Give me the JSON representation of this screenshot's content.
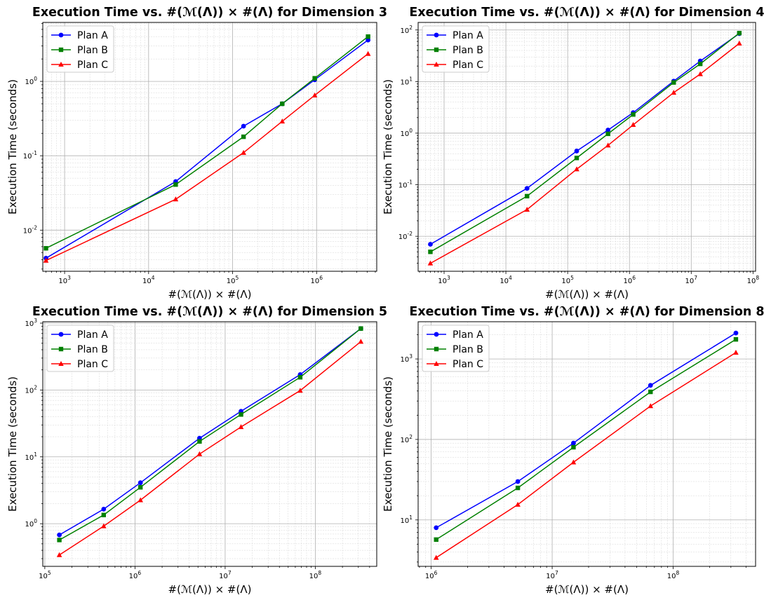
{
  "chart_data": [
    {
      "type": "line",
      "title": "Execution Time vs. #(ℳ(Λ)) × #(Λ) for Dimension 3",
      "xlabel": "#(ℳ(Λ)) × #(Λ)",
      "ylabel": "Execution Time (seconds)",
      "xscale": "log",
      "yscale": "log",
      "xlim": [
        550,
        5200000
      ],
      "ylim": [
        0.0028,
        6.2
      ],
      "xticks": [
        {
          "value": 1000,
          "label": "10^3"
        },
        {
          "value": 10000,
          "label": "10^4"
        },
        {
          "value": 100000,
          "label": "10^5"
        },
        {
          "value": 1000000,
          "label": "10^6"
        }
      ],
      "yticks": [
        {
          "value": 0.01,
          "label": "10^-2"
        },
        {
          "value": 0.1,
          "label": "10^-1"
        },
        {
          "value": 1,
          "label": "10^0"
        }
      ],
      "grid": true,
      "legend": "top-left",
      "x": [
        600,
        21000,
        135000,
        390000,
        950000,
        4100000
      ],
      "series": [
        {
          "name": "Plan A",
          "color": "#0000ff",
          "marker": "circle",
          "values": [
            0.0042,
            0.045,
            0.25,
            0.5,
            1.05,
            3.6
          ]
        },
        {
          "name": "Plan B",
          "color": "#008000",
          "marker": "square",
          "values": [
            0.0057,
            0.041,
            0.18,
            0.5,
            1.1,
            4.0
          ]
        },
        {
          "name": "Plan C",
          "color": "#ff0000",
          "marker": "triangle",
          "values": [
            0.0039,
            0.026,
            0.11,
            0.29,
            0.65,
            2.35
          ]
        }
      ]
    },
    {
      "type": "line",
      "title": "Execution Time vs. #(ℳ(Λ)) × #(Λ) for Dimension 4",
      "xlabel": "#(ℳ(Λ)) × #(Λ)",
      "ylabel": "Execution Time (seconds)",
      "xscale": "log",
      "yscale": "log",
      "xlim": [
        380,
        110000000
      ],
      "ylim": [
        0.0021,
        140
      ],
      "xticks": [
        {
          "value": 1000,
          "label": "10^3"
        },
        {
          "value": 10000,
          "label": "10^4"
        },
        {
          "value": 100000,
          "label": "10^5"
        },
        {
          "value": 1000000,
          "label": "10^6"
        },
        {
          "value": 10000000,
          "label": "10^7"
        },
        {
          "value": 100000000,
          "label": "10^8"
        }
      ],
      "yticks": [
        {
          "value": 0.01,
          "label": "10^-2"
        },
        {
          "value": 0.1,
          "label": "10^-1"
        },
        {
          "value": 1,
          "label": "10^0"
        },
        {
          "value": 10,
          "label": "10^1"
        },
        {
          "value": 100,
          "label": "10^2"
        }
      ],
      "grid": true,
      "legend": "top-left",
      "x": [
        600,
        22000,
        140000,
        450000,
        1150000,
        5200000,
        14000000,
        60000000
      ],
      "series": [
        {
          "name": "Plan A",
          "color": "#0000ff",
          "marker": "circle",
          "values": [
            0.007,
            0.085,
            0.45,
            1.15,
            2.5,
            10.2,
            25,
            85
          ]
        },
        {
          "name": "Plan B",
          "color": "#008000",
          "marker": "square",
          "values": [
            0.005,
            0.06,
            0.33,
            0.97,
            2.3,
            9.6,
            22,
            87
          ]
        },
        {
          "name": "Plan C",
          "color": "#ff0000",
          "marker": "triangle",
          "values": [
            0.003,
            0.033,
            0.2,
            0.58,
            1.45,
            6.1,
            14,
            55
          ]
        }
      ]
    },
    {
      "type": "line",
      "title": "Execution Time vs. #(ℳ(Λ)) × #(Λ) for Dimension 5",
      "xlabel": "#(ℳ(Λ)) × #(Λ)",
      "ylabel": "Execution Time (seconds)",
      "xscale": "log",
      "yscale": "log",
      "xlim": [
        95000,
        480000000
      ],
      "ylim": [
        0.23,
        1050
      ],
      "xticks": [
        {
          "value": 100000,
          "label": "10^5"
        },
        {
          "value": 1000000,
          "label": "10^6"
        },
        {
          "value": 10000000,
          "label": "10^7"
        },
        {
          "value": 100000000,
          "label": "10^8"
        }
      ],
      "yticks": [
        {
          "value": 1,
          "label": "10^0"
        },
        {
          "value": 10,
          "label": "10^1"
        },
        {
          "value": 100,
          "label": "10^2"
        },
        {
          "value": 1000,
          "label": "10^3"
        }
      ],
      "grid": true,
      "legend": "top-left",
      "x": [
        145000,
        450000,
        1150000,
        5200000,
        15000000,
        68000000,
        320000000
      ],
      "series": [
        {
          "name": "Plan A",
          "color": "#0000ff",
          "marker": "circle",
          "values": [
            0.68,
            1.65,
            4.1,
            19,
            48,
            170,
            830
          ]
        },
        {
          "name": "Plan B",
          "color": "#008000",
          "marker": "square",
          "values": [
            0.57,
            1.35,
            3.5,
            17,
            43,
            155,
            830
          ]
        },
        {
          "name": "Plan C",
          "color": "#ff0000",
          "marker": "triangle",
          "values": [
            0.34,
            0.92,
            2.25,
            11,
            28,
            98,
            530
          ]
        }
      ]
    },
    {
      "type": "line",
      "title": "Execution Time vs. #(ℳ(Λ)) × #(Λ) for Dimension 8",
      "xlabel": "#(ℳ(Λ)) × #(Λ)",
      "ylabel": "Execution Time (seconds)",
      "xscale": "log",
      "yscale": "log",
      "xlim": [
        780000,
        480000000
      ],
      "ylim": [
        2.65,
        2900
      ],
      "xticks": [
        {
          "value": 1000000,
          "label": "10^6"
        },
        {
          "value": 10000000,
          "label": "10^7"
        },
        {
          "value": 100000000,
          "label": "10^8"
        }
      ],
      "yticks": [
        {
          "value": 10,
          "label": "10^1"
        },
        {
          "value": 100,
          "label": "10^2"
        },
        {
          "value": 1000,
          "label": "10^3"
        }
      ],
      "grid": true,
      "legend": "top-left",
      "x": [
        1100000,
        5200000,
        15000000,
        65000000,
        330000000
      ],
      "series": [
        {
          "name": "Plan A",
          "color": "#0000ff",
          "marker": "circle",
          "values": [
            8,
            30,
            90,
            470,
            2100
          ]
        },
        {
          "name": "Plan B",
          "color": "#008000",
          "marker": "square",
          "values": [
            5.7,
            25,
            80,
            390,
            1750
          ]
        },
        {
          "name": "Plan C",
          "color": "#ff0000",
          "marker": "triangle",
          "values": [
            3.4,
            15.5,
            52,
            260,
            1200
          ]
        }
      ]
    }
  ]
}
